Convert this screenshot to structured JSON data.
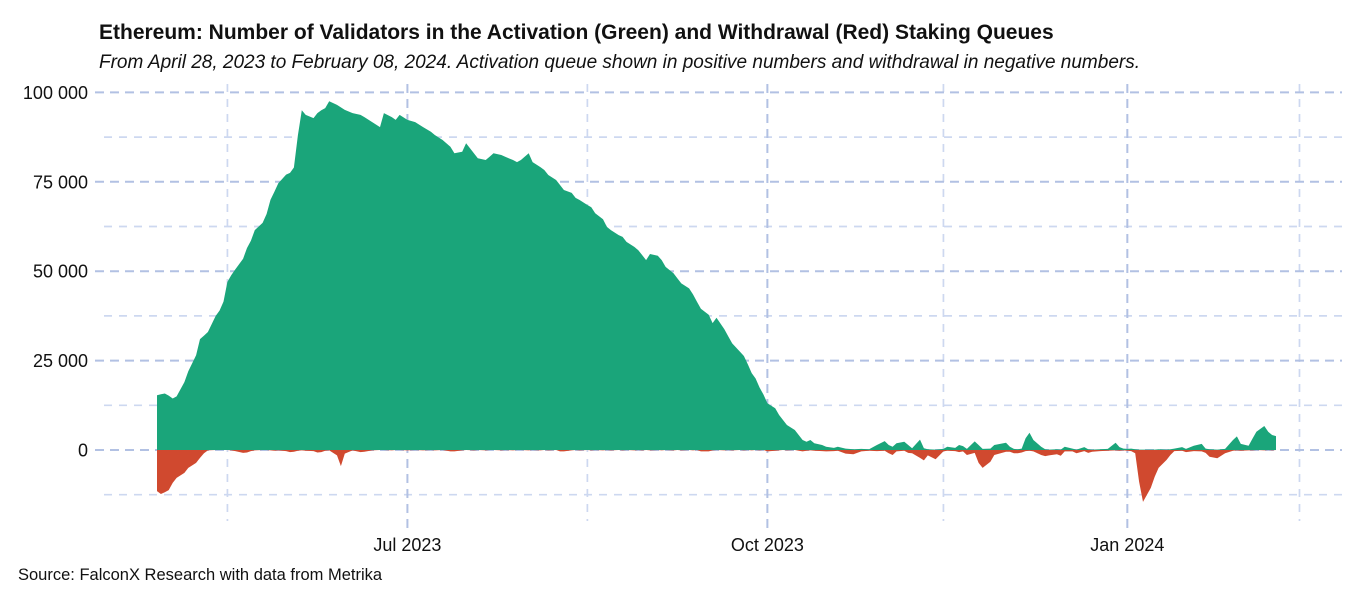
{
  "header": {
    "title": "Ethereum: Number of Validators in the Activation (Green) and Withdrawal (Red) Staking Queues",
    "subtitle": "From April 28, 2023 to February 08, 2024. Activation queue shown in positive numbers and withdrawal in negative numbers."
  },
  "footer": {
    "source": "Source: FalconX Research with data from Metrika"
  },
  "colors": {
    "activation_green": "#1aa57a",
    "withdrawal_red": "#d0492f",
    "grid_major": "#b2c1e3",
    "grid_minor": "#cdd8f0",
    "text": "#111111"
  },
  "chart_data": {
    "type": "area",
    "title": "Ethereum: Number of Validators in the Activation (Green) and Withdrawal (Red) Staking Queues",
    "subtitle": "From April 28, 2023 to February 08, 2024. Activation queue shown in positive numbers and withdrawal in negative numbers.",
    "source": "Source: FalconX Research with data from Metrika",
    "grid": true,
    "legend_position": "none",
    "x_range": [
      "2023-04-28",
      "2024-02-08"
    ],
    "ylim": [
      -17000,
      100000
    ],
    "y_axis": {
      "tick_values": [
        0,
        25000,
        50000,
        75000,
        100000
      ],
      "tick_labels": [
        "0",
        "25 000",
        "50 000",
        "75 000",
        "100 000"
      ],
      "minor_tick_values": [
        -12500,
        12500,
        37500,
        62500,
        87500
      ]
    },
    "x_axis": {
      "tick_dates": [
        "2023-07-01",
        "2023-10-01",
        "2024-01-01"
      ],
      "tick_labels": [
        "Jul 2023",
        "Oct 2023",
        "Jan 2024"
      ],
      "minor_tick_dates": [
        "2023-05-16",
        "2023-08-16",
        "2023-11-15",
        "2024-02-14"
      ]
    },
    "series": [
      {
        "name": "Activation queue (positive)",
        "color": "#1aa57a"
      },
      {
        "name": "Withdrawal queue (negative)",
        "color": "#d0492f"
      }
    ],
    "points": [
      [
        "2023-04-28",
        15300,
        -11500
      ],
      [
        "2023-04-29",
        15600,
        -12300
      ],
      [
        "2023-04-30",
        15800,
        -11800
      ],
      [
        "2023-05-01",
        15200,
        -11200
      ],
      [
        "2023-05-02",
        14400,
        -9200
      ],
      [
        "2023-05-03",
        15000,
        -7800
      ],
      [
        "2023-05-05",
        19000,
        -6400
      ],
      [
        "2023-05-06",
        22000,
        -5000
      ],
      [
        "2023-05-08",
        26500,
        -3600
      ],
      [
        "2023-05-09",
        31000,
        -2200
      ],
      [
        "2023-05-10",
        32000,
        -900
      ],
      [
        "2023-05-11",
        33000,
        -100
      ],
      [
        "2023-05-13",
        37500,
        0
      ],
      [
        "2023-05-14",
        39000,
        0
      ],
      [
        "2023-05-15",
        41500,
        0
      ],
      [
        "2023-05-16",
        47000,
        0
      ],
      [
        "2023-05-17",
        48900,
        -100
      ],
      [
        "2023-05-18",
        50500,
        -300
      ],
      [
        "2023-05-20",
        53500,
        -800
      ],
      [
        "2023-05-21",
        56500,
        -700
      ],
      [
        "2023-05-22",
        58500,
        -300
      ],
      [
        "2023-05-23",
        61500,
        -100
      ],
      [
        "2023-05-25",
        63500,
        0
      ],
      [
        "2023-05-26",
        66000,
        0
      ],
      [
        "2023-05-27",
        70000,
        -100
      ],
      [
        "2023-05-28",
        72200,
        -200
      ],
      [
        "2023-05-29",
        74600,
        -100
      ],
      [
        "2023-05-31",
        77000,
        -300
      ],
      [
        "2023-06-01",
        77500,
        -600
      ],
      [
        "2023-06-02",
        79000,
        -500
      ],
      [
        "2023-06-03",
        88000,
        -200
      ],
      [
        "2023-06-04",
        95000,
        -100
      ],
      [
        "2023-06-05",
        93700,
        -200
      ],
      [
        "2023-06-07",
        92800,
        -300
      ],
      [
        "2023-06-08",
        94200,
        -700
      ],
      [
        "2023-06-09",
        95000,
        -600
      ],
      [
        "2023-06-10",
        95600,
        -200
      ],
      [
        "2023-06-11",
        97500,
        -100
      ],
      [
        "2023-06-13",
        96500,
        -1500
      ],
      [
        "2023-06-14",
        95800,
        -4500
      ],
      [
        "2023-06-15",
        95100,
        -1000
      ],
      [
        "2023-06-17",
        94200,
        -100
      ],
      [
        "2023-06-19",
        93700,
        -600
      ],
      [
        "2023-06-20",
        93100,
        -500
      ],
      [
        "2023-06-22",
        91700,
        -100
      ],
      [
        "2023-06-24",
        90300,
        0
      ],
      [
        "2023-06-25",
        94200,
        0
      ],
      [
        "2023-06-27",
        93100,
        -100
      ],
      [
        "2023-06-28",
        92300,
        0
      ],
      [
        "2023-06-29",
        93700,
        0
      ],
      [
        "2023-07-01",
        92300,
        -100
      ],
      [
        "2023-07-03",
        91700,
        0
      ],
      [
        "2023-07-05",
        90300,
        -100
      ],
      [
        "2023-07-07",
        89000,
        0
      ],
      [
        "2023-07-08",
        88100,
        -100
      ],
      [
        "2023-07-10",
        86700,
        0
      ],
      [
        "2023-07-12",
        84800,
        -400
      ],
      [
        "2023-07-13",
        83000,
        -400
      ],
      [
        "2023-07-15",
        83400,
        -100
      ],
      [
        "2023-07-16",
        85800,
        0
      ],
      [
        "2023-07-18",
        83000,
        -100
      ],
      [
        "2023-07-19",
        81600,
        0
      ],
      [
        "2023-07-21",
        81100,
        -100
      ],
      [
        "2023-07-22",
        82000,
        0
      ],
      [
        "2023-07-23",
        83000,
        0
      ],
      [
        "2023-07-25",
        82500,
        -100
      ],
      [
        "2023-07-26",
        82000,
        0
      ],
      [
        "2023-07-28",
        81100,
        -100
      ],
      [
        "2023-07-29",
        80500,
        0
      ],
      [
        "2023-07-30",
        81100,
        0
      ],
      [
        "2023-08-01",
        83000,
        -100
      ],
      [
        "2023-08-02",
        80500,
        0
      ],
      [
        "2023-08-04",
        79100,
        -100
      ],
      [
        "2023-08-05",
        78300,
        0
      ],
      [
        "2023-08-06",
        76900,
        -100
      ],
      [
        "2023-08-08",
        75500,
        0
      ],
      [
        "2023-08-09",
        74100,
        -400
      ],
      [
        "2023-08-10",
        72700,
        -400
      ],
      [
        "2023-08-12",
        71900,
        -100
      ],
      [
        "2023-08-13",
        70500,
        0
      ],
      [
        "2023-08-14",
        69900,
        -100
      ],
      [
        "2023-08-16",
        68500,
        0
      ],
      [
        "2023-08-17",
        67900,
        -100
      ],
      [
        "2023-08-18",
        66200,
        0
      ],
      [
        "2023-08-20",
        64500,
        -100
      ],
      [
        "2023-08-21",
        62400,
        0
      ],
      [
        "2023-08-22",
        61500,
        -100
      ],
      [
        "2023-08-24",
        60100,
        0
      ],
      [
        "2023-08-25",
        59600,
        -100
      ],
      [
        "2023-08-26",
        58200,
        0
      ],
      [
        "2023-08-28",
        56800,
        -100
      ],
      [
        "2023-08-29",
        55900,
        0
      ],
      [
        "2023-08-30",
        54500,
        -100
      ],
      [
        "2023-08-31",
        53100,
        0
      ],
      [
        "2023-09-01",
        54800,
        -100
      ],
      [
        "2023-09-03",
        54300,
        0
      ],
      [
        "2023-09-04",
        53100,
        -100
      ],
      [
        "2023-09-05",
        51200,
        0
      ],
      [
        "2023-09-07",
        49400,
        -100
      ],
      [
        "2023-09-08",
        48000,
        0
      ],
      [
        "2023-09-09",
        46600,
        -100
      ],
      [
        "2023-09-11",
        45200,
        0
      ],
      [
        "2023-09-12",
        43500,
        -100
      ],
      [
        "2023-09-13",
        41500,
        0
      ],
      [
        "2023-09-14",
        39500,
        -400
      ],
      [
        "2023-09-16",
        37800,
        -400
      ],
      [
        "2023-09-17",
        35500,
        -100
      ],
      [
        "2023-09-18",
        37000,
        0
      ],
      [
        "2023-09-20",
        33800,
        -100
      ],
      [
        "2023-09-21",
        31800,
        0
      ],
      [
        "2023-09-22",
        29800,
        -100
      ],
      [
        "2023-09-24",
        27500,
        0
      ],
      [
        "2023-09-25",
        26300,
        -100
      ],
      [
        "2023-09-26",
        24000,
        0
      ],
      [
        "2023-09-27",
        21500,
        -100
      ],
      [
        "2023-09-28",
        20000,
        0
      ],
      [
        "2023-09-29",
        17500,
        -100
      ],
      [
        "2023-09-30",
        15500,
        0
      ],
      [
        "2023-10-01",
        13100,
        -400
      ],
      [
        "2023-10-03",
        11700,
        -200
      ],
      [
        "2023-10-04",
        9800,
        -100
      ],
      [
        "2023-10-05",
        8400,
        0
      ],
      [
        "2023-10-06",
        7000,
        -100
      ],
      [
        "2023-10-08",
        5600,
        0
      ],
      [
        "2023-10-09",
        4200,
        -200
      ],
      [
        "2023-10-10",
        2800,
        -400
      ],
      [
        "2023-10-11",
        2300,
        -200
      ],
      [
        "2023-10-12",
        2800,
        -100
      ],
      [
        "2023-10-13",
        1900,
        -200
      ],
      [
        "2023-10-15",
        1400,
        -300
      ],
      [
        "2023-10-16",
        900,
        -400
      ],
      [
        "2023-10-18",
        600,
        -300
      ],
      [
        "2023-10-19",
        900,
        -200
      ],
      [
        "2023-10-21",
        400,
        -1000
      ],
      [
        "2023-10-23",
        200,
        -1200
      ],
      [
        "2023-10-25",
        300,
        -400
      ],
      [
        "2023-10-27",
        200,
        -200
      ],
      [
        "2023-10-29",
        1400,
        -300
      ],
      [
        "2023-10-31",
        2500,
        -200
      ],
      [
        "2023-11-01",
        1400,
        -900
      ],
      [
        "2023-11-02",
        900,
        -1400
      ],
      [
        "2023-11-03",
        1900,
        -400
      ],
      [
        "2023-11-05",
        2300,
        -200
      ],
      [
        "2023-11-06",
        1400,
        -800
      ],
      [
        "2023-11-07",
        500,
        -900
      ],
      [
        "2023-11-09",
        2900,
        -2200
      ],
      [
        "2023-11-10",
        500,
        -2900
      ],
      [
        "2023-11-11",
        200,
        -1500
      ],
      [
        "2023-11-13",
        100,
        -2600
      ],
      [
        "2023-11-15",
        300,
        -400
      ],
      [
        "2023-11-16",
        900,
        -200
      ],
      [
        "2023-11-18",
        600,
        -300
      ],
      [
        "2023-11-19",
        1400,
        -600
      ],
      [
        "2023-11-20",
        1100,
        -400
      ],
      [
        "2023-11-21",
        300,
        -1400
      ],
      [
        "2023-11-23",
        2400,
        -800
      ],
      [
        "2023-11-24",
        1400,
        -3600
      ],
      [
        "2023-11-25",
        300,
        -5000
      ],
      [
        "2023-11-27",
        400,
        -3300
      ],
      [
        "2023-11-28",
        1400,
        -1400
      ],
      [
        "2023-12-01",
        2000,
        -500
      ],
      [
        "2023-12-02",
        900,
        -500
      ],
      [
        "2023-12-03",
        300,
        -900
      ],
      [
        "2023-12-04",
        200,
        -900
      ],
      [
        "2023-12-05",
        400,
        -700
      ],
      [
        "2023-12-06",
        3300,
        -300
      ],
      [
        "2023-12-07",
        4800,
        -200
      ],
      [
        "2023-12-08",
        2800,
        -400
      ],
      [
        "2023-12-10",
        900,
        -1400
      ],
      [
        "2023-12-11",
        200,
        -1700
      ],
      [
        "2023-12-12",
        100,
        -1500
      ],
      [
        "2023-12-14",
        200,
        -1200
      ],
      [
        "2023-12-15",
        100,
        -1600
      ],
      [
        "2023-12-16",
        900,
        -400
      ],
      [
        "2023-12-18",
        400,
        -400
      ],
      [
        "2023-12-19",
        100,
        -900
      ],
      [
        "2023-12-21",
        800,
        -300
      ],
      [
        "2023-12-22",
        200,
        -800
      ],
      [
        "2023-12-23",
        100,
        -500
      ],
      [
        "2023-12-25",
        200,
        -300
      ],
      [
        "2023-12-27",
        300,
        -200
      ],
      [
        "2023-12-29",
        2000,
        -100
      ],
      [
        "2023-12-30",
        800,
        -200
      ],
      [
        "2023-12-31",
        400,
        -100
      ],
      [
        "2024-01-01",
        300,
        -200
      ],
      [
        "2024-01-02",
        400,
        -300
      ],
      [
        "2024-01-03",
        200,
        -900
      ],
      [
        "2024-01-04",
        100,
        -8900
      ],
      [
        "2024-01-05",
        100,
        -14500
      ],
      [
        "2024-01-07",
        100,
        -10600
      ],
      [
        "2024-01-08",
        100,
        -7500
      ],
      [
        "2024-01-09",
        200,
        -5000
      ],
      [
        "2024-01-11",
        100,
        -2800
      ],
      [
        "2024-01-12",
        200,
        -1400
      ],
      [
        "2024-01-13",
        400,
        -300
      ],
      [
        "2024-01-15",
        800,
        -200
      ],
      [
        "2024-01-16",
        300,
        -600
      ],
      [
        "2024-01-18",
        1200,
        -300
      ],
      [
        "2024-01-20",
        1700,
        -400
      ],
      [
        "2024-01-21",
        400,
        -800
      ],
      [
        "2024-01-22",
        200,
        -1900
      ],
      [
        "2024-01-24",
        100,
        -2300
      ],
      [
        "2024-01-26",
        300,
        -900
      ],
      [
        "2024-01-28",
        2800,
        -200
      ],
      [
        "2024-01-29",
        3800,
        -100
      ],
      [
        "2024-01-30",
        1700,
        -200
      ],
      [
        "2024-02-01",
        1200,
        -100
      ],
      [
        "2024-02-02",
        3200,
        -100
      ],
      [
        "2024-02-03",
        5100,
        0
      ],
      [
        "2024-02-05",
        6700,
        -100
      ],
      [
        "2024-02-06",
        5100,
        0
      ],
      [
        "2024-02-07",
        4200,
        -100
      ],
      [
        "2024-02-08",
        3900,
        0
      ]
    ]
  }
}
